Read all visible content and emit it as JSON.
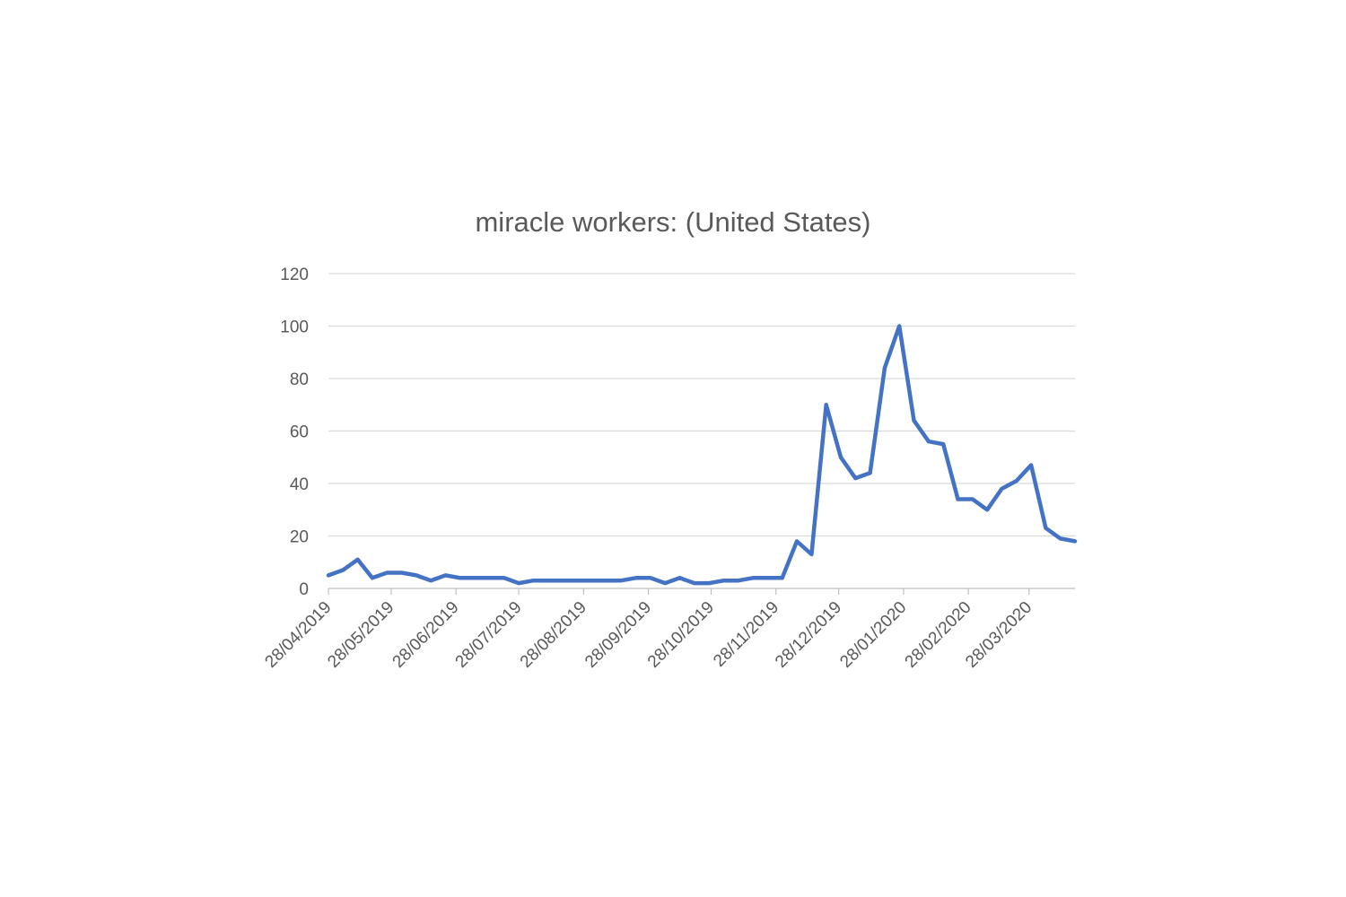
{
  "chart_data": {
    "type": "line",
    "title": "miracle workers: (United States)",
    "xlabel": "",
    "ylabel": "",
    "ylim": [
      0,
      120
    ],
    "yticks": [
      0,
      20,
      40,
      60,
      80,
      100,
      120
    ],
    "x_tick_labels": [
      "28/04/2019",
      "28/05/2019",
      "28/06/2019",
      "28/07/2019",
      "28/08/2019",
      "28/09/2019",
      "28/10/2019",
      "28/11/2019",
      "28/12/2019",
      "28/01/2020",
      "28/02/2020",
      "28/03/2020"
    ],
    "grid": true,
    "legend": "none",
    "series": [
      {
        "color": "#4472C4",
        "x": [
          "28/04/2019",
          "05/05/2019",
          "12/05/2019",
          "19/05/2019",
          "26/05/2019",
          "02/06/2019",
          "09/06/2019",
          "16/06/2019",
          "23/06/2019",
          "30/06/2019",
          "07/07/2019",
          "14/07/2019",
          "21/07/2019",
          "28/07/2019",
          "04/08/2019",
          "11/08/2019",
          "18/08/2019",
          "25/08/2019",
          "01/09/2019",
          "08/09/2019",
          "15/09/2019",
          "22/09/2019",
          "29/09/2019",
          "06/10/2019",
          "13/10/2019",
          "20/10/2019",
          "27/10/2019",
          "03/11/2019",
          "10/11/2019",
          "17/11/2019",
          "24/11/2019",
          "01/12/2019",
          "08/12/2019",
          "15/12/2019",
          "22/12/2019",
          "29/12/2019",
          "05/01/2020",
          "12/01/2020",
          "19/01/2020",
          "26/01/2020",
          "02/02/2020",
          "09/02/2020",
          "16/02/2020",
          "23/02/2020",
          "01/03/2020",
          "08/03/2020",
          "15/03/2020",
          "22/03/2020",
          "29/03/2020",
          "05/04/2020",
          "12/04/2020",
          "19/04/2020"
        ],
        "y": [
          5,
          7,
          11,
          4,
          6,
          6,
          5,
          3,
          5,
          4,
          4,
          4,
          4,
          2,
          3,
          3,
          3,
          3,
          3,
          3,
          3,
          4,
          4,
          2,
          4,
          2,
          2,
          3,
          3,
          4,
          4,
          4,
          18,
          13,
          70,
          50,
          42,
          44,
          84,
          100,
          64,
          56,
          55,
          34,
          34,
          30,
          38,
          41,
          47,
          23,
          19,
          18
        ]
      }
    ]
  }
}
